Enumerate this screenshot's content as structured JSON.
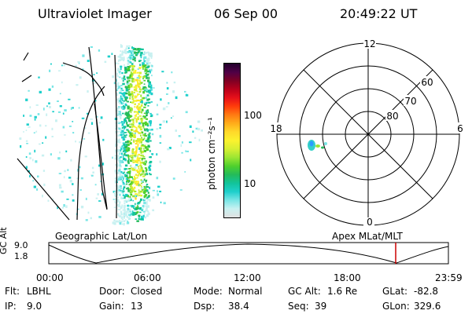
{
  "header": {
    "instrument": "Ultraviolet Imager",
    "date": "06 Sep 00",
    "time": "20:49:22 UT"
  },
  "colorbar": {
    "label": "photon cm⁻²s⁻¹",
    "tick_100": "100",
    "tick_10": "10",
    "scale": "log",
    "colors": [
      "#e0e0e0",
      "#c9f1f1",
      "#7ae6e6",
      "#1fd0cc",
      "#12c49b",
      "#24bb5a",
      "#4ed02d",
      "#9be633",
      "#d6ef33",
      "#fbf22e",
      "#ffd92a",
      "#ffad1a",
      "#ff7a12",
      "#ff3d0b",
      "#e6101a",
      "#b8001b",
      "#7e0024",
      "#4f0046",
      "#22002c"
    ]
  },
  "polar_plot": {
    "label_12": "12",
    "label_18": "18",
    "label_6": "6",
    "label_0": "0",
    "label_60": "60",
    "label_70": "70",
    "label_80": "80"
  },
  "altitude_panel": {
    "left_label": "Geographic Lat/Lon",
    "right_label": "Apex MLat/MLT",
    "axis_label": "GC Alt",
    "y_ticks": [
      "9.0",
      "1.8"
    ],
    "x_ticks": [
      "00:00",
      "06:00",
      "12:00",
      "18:00",
      "23:59"
    ],
    "marker_color": "#cc0000"
  },
  "footer": {
    "flt_label": "Flt:",
    "flt_value": "LBHL",
    "ip_label": "IP:",
    "ip_value": "9.0",
    "door_label": "Door:",
    "door_value": "Closed",
    "gain_label": "Gain:",
    "gain_value": "13",
    "mode_label": "Mode:",
    "mode_value": "Normal",
    "dsp_label": "Dsp:",
    "dsp_value": "38.4",
    "gcalt_label": "GC Alt:",
    "gcalt_value": "1.6 Re",
    "seq_label": "Seq:",
    "seq_value": "39",
    "glat_label": "GLat:",
    "glat_value": "-82.8",
    "glon_label": "GLon:",
    "glon_value": "329.6"
  }
}
